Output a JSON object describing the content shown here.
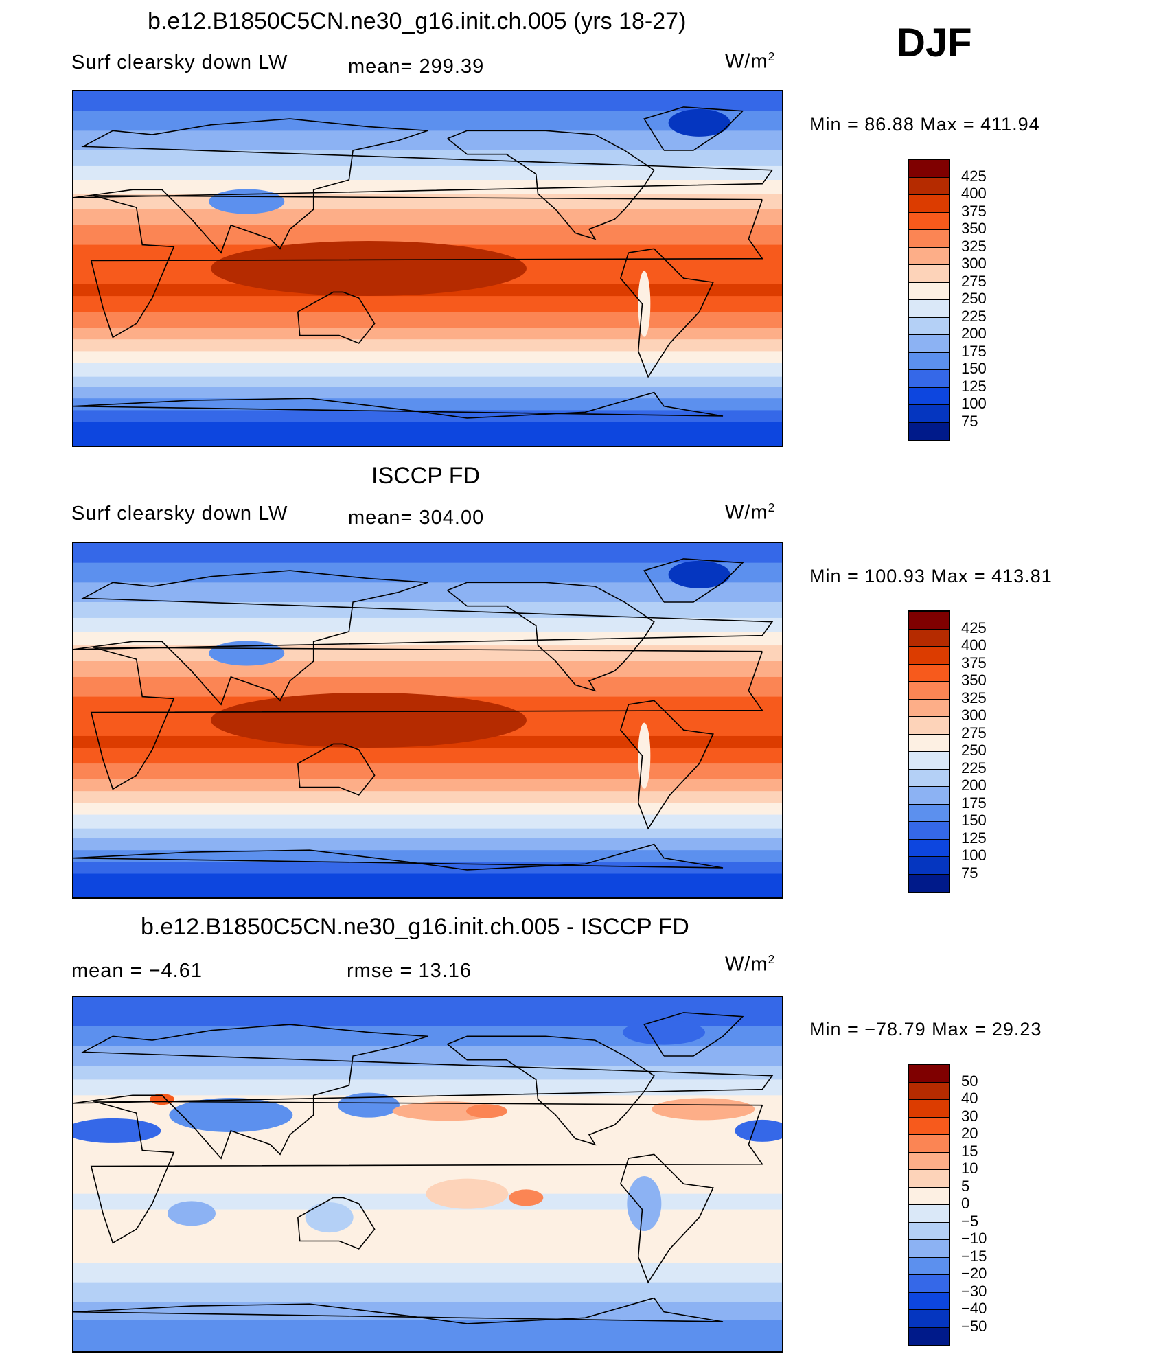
{
  "season": "DJF",
  "colors": {
    "abs_scale": [
      "#7f0000",
      "#b52b00",
      "#dc3c00",
      "#f75a1c",
      "#fb8554",
      "#fdae88",
      "#fdd3b9",
      "#fdf0e3",
      "#dae8f8",
      "#b4d0f6",
      "#8cb2f3",
      "#5c90ee",
      "#3568e8",
      "#0d46df",
      "#0536c0",
      "#001a8a"
    ],
    "diff_scale": [
      "#7f0000",
      "#b52b00",
      "#dc3c00",
      "#f75a1c",
      "#fb8554",
      "#fdae88",
      "#fdd3b9",
      "#fdf0e3",
      "#dae8f8",
      "#b4d0f6",
      "#8cb2f3",
      "#5c90ee",
      "#3568e8",
      "#0d46df",
      "#0536c0",
      "#001a8a"
    ]
  },
  "chart_data": [
    {
      "type": "heatmap",
      "title": "b.e12.B1850C5CN.ne30_g16.init.ch.005 (yrs 18-27)",
      "variable": "Surf clearsky down LW",
      "mean_text": "mean= 299.39",
      "units": "W/m",
      "units_exp": "2",
      "minmax_text": "Min =   86.88 Max = 411.94",
      "min": 86.88,
      "max": 411.94,
      "mean": 299.39,
      "levels": [
        "425",
        "400",
        "375",
        "350",
        "325",
        "300",
        "275",
        "250",
        "225",
        "200",
        "175",
        "150",
        "125",
        "100",
        "75"
      ]
    },
    {
      "type": "heatmap",
      "title": "ISCCP FD",
      "variable": "Surf clearsky down LW",
      "mean_text": "mean= 304.00",
      "units": "W/m",
      "units_exp": "2",
      "minmax_text": "Min = 100.93 Max = 413.81",
      "min": 100.93,
      "max": 413.81,
      "mean": 304.0,
      "levels": [
        "425",
        "400",
        "375",
        "350",
        "325",
        "300",
        "275",
        "250",
        "225",
        "200",
        "175",
        "150",
        "125",
        "100",
        "75"
      ]
    },
    {
      "type": "heatmap",
      "title": "b.e12.B1850C5CN.ne30_g16.init.ch.005 - ISCCP FD",
      "mean_text": "mean =    −4.61",
      "rmse_text": "rmse =    13.16",
      "units": "W/m",
      "units_exp": "2",
      "minmax_text": "Min = −78.79 Max =   29.23",
      "min": -78.79,
      "max": 29.23,
      "mean": -4.61,
      "rmse": 13.16,
      "levels": [
        "50",
        "40",
        "30",
        "20",
        "15",
        "10",
        "5",
        "0",
        "−5",
        "−10",
        "−15",
        "−20",
        "−30",
        "−40",
        "−50"
      ]
    }
  ]
}
